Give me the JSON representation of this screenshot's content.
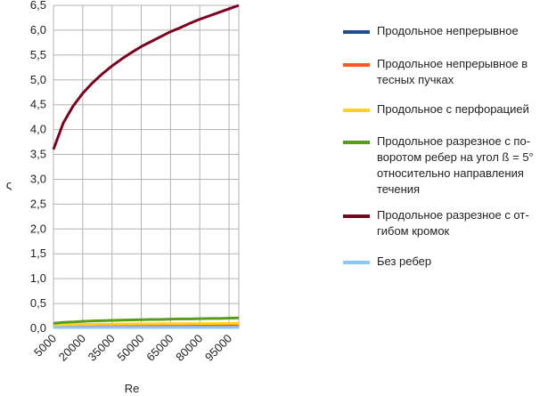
{
  "chart_data": {
    "type": "line",
    "x_label": "Re",
    "y_label": "ς",
    "x": [
      5000,
      10000,
      15000,
      20000,
      25000,
      30000,
      35000,
      40000,
      45000,
      50000,
      55000,
      60000,
      65000,
      70000,
      75000,
      80000,
      85000,
      90000,
      95000,
      100000
    ],
    "xlim": [
      5000,
      100000
    ],
    "xticks": [
      5000,
      20000,
      35000,
      50000,
      65000,
      80000,
      95000
    ],
    "ylim": [
      0,
      6.5
    ],
    "yticks": [
      {
        "value": 0,
        "label": "0,0"
      },
      {
        "value": 0.5,
        "label": "0,5"
      },
      {
        "value": 1,
        "label": "1,0"
      },
      {
        "value": 1.5,
        "label": "1,5"
      },
      {
        "value": 2,
        "label": "2,0"
      },
      {
        "value": 2.5,
        "label": "2,5"
      },
      {
        "value": 3,
        "label": "3,0"
      },
      {
        "value": 3.5,
        "label": "3,5"
      },
      {
        "value": 4,
        "label": "4,0"
      },
      {
        "value": 4.5,
        "label": "4,5"
      },
      {
        "value": 5,
        "label": "5,0"
      },
      {
        "value": 5.5,
        "label": "5,5"
      },
      {
        "value": 6,
        "label": "6,0"
      },
      {
        "value": 6.5,
        "label": "6,5"
      }
    ],
    "grid": true,
    "series": [
      {
        "name": "Продольное непрерывное",
        "color": "#1f4e8c",
        "values": [
          0.04,
          0.041,
          0.042,
          0.043,
          0.044,
          0.045,
          0.045,
          0.046,
          0.046,
          0.047,
          0.047,
          0.048,
          0.048,
          0.048,
          0.049,
          0.049,
          0.049,
          0.05,
          0.05,
          0.05
        ]
      },
      {
        "name": "Продольное непрерывное в тесных пучках",
        "color": "#ff5722",
        "values": [
          0.05,
          0.052,
          0.054,
          0.055,
          0.056,
          0.057,
          0.058,
          0.059,
          0.06,
          0.061,
          0.062,
          0.062,
          0.063,
          0.064,
          0.065,
          0.066,
          0.067,
          0.068,
          0.069,
          0.07
        ]
      },
      {
        "name": "Продольное с перфорацией",
        "color": "#ffd320",
        "values": [
          0.07,
          0.075,
          0.078,
          0.08,
          0.082,
          0.084,
          0.086,
          0.088,
          0.089,
          0.09,
          0.092,
          0.093,
          0.094,
          0.095,
          0.096,
          0.097,
          0.098,
          0.099,
          0.1,
          0.1
        ]
      },
      {
        "name": "Продольное разрезное с по-воротом ребер на угол ß = 5° относительно направления течения",
        "color": "#579d1c",
        "values": [
          0.1,
          0.12,
          0.13,
          0.14,
          0.15,
          0.155,
          0.16,
          0.165,
          0.17,
          0.175,
          0.18,
          0.18,
          0.185,
          0.19,
          0.19,
          0.195,
          0.2,
          0.2,
          0.205,
          0.21
        ]
      },
      {
        "name": "Продольное разрезное с от-гибом кромок",
        "color": "#7e0021",
        "values": [
          3.6,
          4.13,
          4.47,
          4.73,
          4.94,
          5.12,
          5.28,
          5.42,
          5.55,
          5.67,
          5.77,
          5.87,
          5.97,
          6.05,
          6.14,
          6.22,
          6.29,
          6.36,
          6.43,
          6.5
        ]
      },
      {
        "name": "Без ребер",
        "color": "#83caff",
        "values": [
          0.02,
          0.02,
          0.02,
          0.02,
          0.02,
          0.02,
          0.02,
          0.02,
          0.02,
          0.02,
          0.02,
          0.02,
          0.02,
          0.02,
          0.02,
          0.02,
          0.02,
          0.02,
          0.02,
          0.02
        ]
      }
    ]
  }
}
